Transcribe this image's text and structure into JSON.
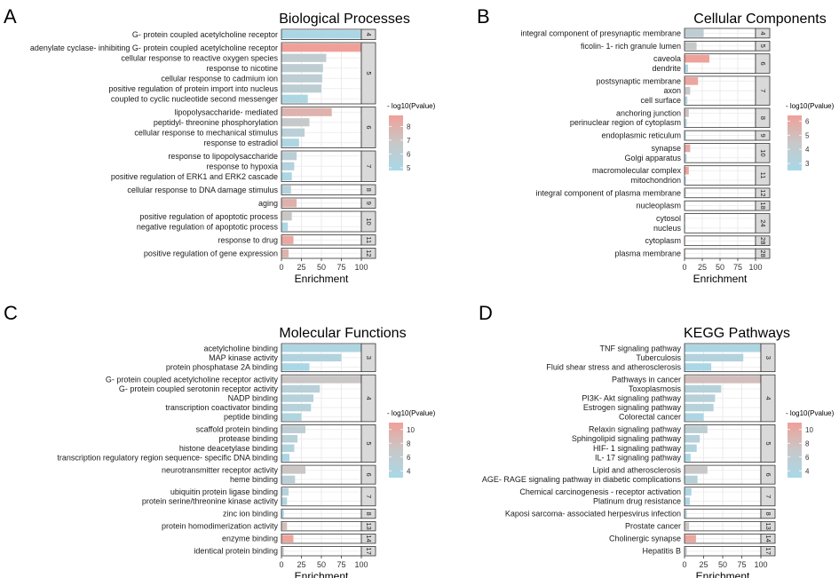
{
  "figure": {
    "common": {
      "xlabel": "Enrichment",
      "x_ticks": [
        0,
        25,
        50,
        75,
        100
      ],
      "xlim": [
        0,
        100
      ],
      "legend_title": "- log10(Pvalue)",
      "color_low": "#a8d8e8",
      "color_mid": "#c8c8c8",
      "color_high": "#f0a098",
      "grid_color": "#ebebeb",
      "strip_color": "#d9d9d9"
    }
  },
  "chart_data": [
    {
      "type": "bar",
      "panel": "A",
      "title": "Biological Processes",
      "legend_ticks": [
        5,
        6,
        7,
        8
      ],
      "color_range": [
        4.8,
        8.8
      ],
      "groups": [
        {
          "facet": "4",
          "items": [
            {
              "label": "G- protein coupled acetylcholine receptor",
              "enrichment": 100,
              "neglog10p": 5.0
            }
          ]
        },
        {
          "facet": "5",
          "items": [
            {
              "label": "adenylate cyclase- inhibiting G- protein coupled acetylcholine receptor",
              "enrichment": 100,
              "neglog10p": 8.8
            },
            {
              "label": "cellular response to reactive oxygen species",
              "enrichment": 56,
              "neglog10p": 6.3
            },
            {
              "label": "response to nicotine",
              "enrichment": 52,
              "neglog10p": 6.2
            },
            {
              "label": "cellular response to cadmium ion",
              "enrichment": 51,
              "neglog10p": 6.2
            },
            {
              "label": "positive regulation of protein import into nucleus",
              "enrichment": 50,
              "neglog10p": 6.1
            },
            {
              "label": "coupled to cyclic nucleotide second messenger",
              "enrichment": 33,
              "neglog10p": 5.1
            }
          ]
        },
        {
          "facet": "6",
          "items": [
            {
              "label": "lipopolysaccharide- mediated",
              "enrichment": 63,
              "neglog10p": 7.9
            },
            {
              "label": "peptidyl- threonine phosphorylation",
              "enrichment": 35,
              "neglog10p": 6.7
            },
            {
              "label": "cellular response to mechanical stimulus",
              "enrichment": 29,
              "neglog10p": 5.9
            },
            {
              "label": "response to estradiol",
              "enrichment": 22,
              "neglog10p": 5.2
            }
          ]
        },
        {
          "facet": "7",
          "items": [
            {
              "label": "response to lipopolysaccharide",
              "enrichment": 19,
              "neglog10p": 6.0
            },
            {
              "label": "response to hypoxia",
              "enrichment": 16,
              "neglog10p": 5.5
            },
            {
              "label": "positive regulation of ERK1 and ERK2 cascade",
              "enrichment": 13,
              "neglog10p": 5.1
            }
          ]
        },
        {
          "facet": "8",
          "items": [
            {
              "label": "cellular response to DNA damage stimulus",
              "enrichment": 12,
              "neglog10p": 5.6
            }
          ]
        },
        {
          "facet": "9",
          "items": [
            {
              "label": "aging",
              "enrichment": 19,
              "neglog10p": 8.0
            }
          ]
        },
        {
          "facet": "10",
          "items": [
            {
              "label": "positive regulation of apoptotic process",
              "enrichment": 13,
              "neglog10p": 6.9
            },
            {
              "label": "negative regulation of apoptotic process",
              "enrichment": 8,
              "neglog10p": 5.1
            }
          ]
        },
        {
          "facet": "11",
          "items": [
            {
              "label": "response to drug",
              "enrichment": 15,
              "neglog10p": 8.5
            }
          ]
        },
        {
          "facet": "12",
          "items": [
            {
              "label": "positive regulation of gene expression",
              "enrichment": 9,
              "neglog10p": 7.9
            }
          ]
        }
      ]
    },
    {
      "type": "bar",
      "panel": "B",
      "title": "Cellular Components",
      "legend_ticks": [
        3,
        4,
        5,
        6
      ],
      "color_range": [
        2.5,
        6.4
      ],
      "groups": [
        {
          "facet": "4",
          "items": [
            {
              "label": "integral component of presynaptic membrane",
              "enrichment": 27,
              "neglog10p": 3.8
            }
          ]
        },
        {
          "facet": "5",
          "items": [
            {
              "label": "ficolin- 1- rich granule lumen",
              "enrichment": 17,
              "neglog10p": 4.3
            }
          ]
        },
        {
          "facet": "6",
          "items": [
            {
              "label": "caveola",
              "enrichment": 35,
              "neglog10p": 6.3
            },
            {
              "label": "dendrite",
              "enrichment": 5,
              "neglog10p": 2.9
            }
          ]
        },
        {
          "facet": "7",
          "items": [
            {
              "label": "postsynaptic membrane",
              "enrichment": 19,
              "neglog10p": 6.1
            },
            {
              "label": "axon",
              "enrichment": 8,
              "neglog10p": 4.5
            },
            {
              "label": "cell surface",
              "enrichment": 4,
              "neglog10p": 3.2
            }
          ]
        },
        {
          "facet": "8",
          "items": [
            {
              "label": "anchoring junction",
              "enrichment": 6,
              "neglog10p": 4.8
            },
            {
              "label": "perinuclear region of cytoplasm",
              "enrichment": 3,
              "neglog10p": 3.1
            }
          ]
        },
        {
          "facet": "9",
          "items": [
            {
              "label": "endoplasmic reticulum",
              "enrichment": 2,
              "neglog10p": 2.8
            }
          ]
        },
        {
          "facet": "10",
          "items": [
            {
              "label": "synapse",
              "enrichment": 8,
              "neglog10p": 5.9
            },
            {
              "label": "Golgi apparatus",
              "enrichment": 3,
              "neglog10p": 3.4
            }
          ]
        },
        {
          "facet": "11",
          "items": [
            {
              "label": "macromolecular complex",
              "enrichment": 6,
              "neglog10p": 6.2
            },
            {
              "label": "mitochondrion",
              "enrichment": 2,
              "neglog10p": 3.2
            }
          ]
        },
        {
          "facet": "12",
          "items": [
            {
              "label": "integral component of plasma membrane",
              "enrichment": 2,
              "neglog10p": 4.2
            }
          ]
        },
        {
          "facet": "18",
          "items": [
            {
              "label": "nucleoplasm",
              "enrichment": 1,
              "neglog10p": 3.0
            }
          ]
        },
        {
          "facet": "24",
          "items": [
            {
              "label": "cytosol",
              "enrichment": 1,
              "neglog10p": 4.0
            },
            {
              "label": "nucleus",
              "enrichment": 1,
              "neglog10p": 3.2
            }
          ]
        },
        {
          "facet": "28",
          "items": [
            {
              "label": "cytoplasm",
              "enrichment": 1,
              "neglog10p": 5.9
            }
          ]
        },
        {
          "facet": "28",
          "items": [
            {
              "label": "plasma membrane",
              "enrichment": 1,
              "neglog10p": 6.1
            }
          ]
        }
      ]
    },
    {
      "type": "bar",
      "panel": "C",
      "title": "Molecular Functions",
      "legend_ticks": [
        4,
        6,
        8,
        10
      ],
      "color_range": [
        3.0,
        11.0
      ],
      "groups": [
        {
          "facet": "3",
          "items": [
            {
              "label": "acetylcholine binding",
              "enrichment": 100,
              "neglog10p": 3.8
            },
            {
              "label": "MAP kinase activity",
              "enrichment": 75,
              "neglog10p": 4.3
            },
            {
              "label": "protein phosphatase 2A binding",
              "enrichment": 35,
              "neglog10p": 3.2
            }
          ]
        },
        {
          "facet": "4",
          "items": [
            {
              "label": "G- protein coupled acetylcholine receptor activity",
              "enrichment": 100,
              "neglog10p": 7.2
            },
            {
              "label": "G- protein coupled serotonin receptor activity",
              "enrichment": 48,
              "neglog10p": 5.0
            },
            {
              "label": "NADP binding",
              "enrichment": 40,
              "neglog10p": 4.8
            },
            {
              "label": "transcription coactivator binding",
              "enrichment": 37,
              "neglog10p": 4.7
            },
            {
              "label": "peptide binding",
              "enrichment": 25,
              "neglog10p": 4.0
            }
          ]
        },
        {
          "facet": "5",
          "items": [
            {
              "label": "scaffold protein binding",
              "enrichment": 30,
              "neglog10p": 5.8
            },
            {
              "label": "protease binding",
              "enrichment": 20,
              "neglog10p": 5.0
            },
            {
              "label": "histone deacetylase binding",
              "enrichment": 16,
              "neglog10p": 4.5
            },
            {
              "label": "transcription regulatory region sequence- specific DNA binding",
              "enrichment": 10,
              "neglog10p": 3.4
            }
          ]
        },
        {
          "facet": "6",
          "items": [
            {
              "label": "neurotransmitter receptor activity",
              "enrichment": 30,
              "neglog10p": 7.3
            },
            {
              "label": "heme binding",
              "enrichment": 17,
              "neglog10p": 5.2
            }
          ]
        },
        {
          "facet": "7",
          "items": [
            {
              "label": "ubiquitin protein ligase binding",
              "enrichment": 9,
              "neglog10p": 4.6
            },
            {
              "label": "protein serine/threonine kinase activity",
              "enrichment": 7,
              "neglog10p": 4.2
            }
          ]
        },
        {
          "facet": "8",
          "items": [
            {
              "label": "zinc ion binding",
              "enrichment": 3,
              "neglog10p": 3.0
            }
          ]
        },
        {
          "facet": "13",
          "items": [
            {
              "label": "protein homodimerization activity",
              "enrichment": 7,
              "neglog10p": 8.0
            }
          ]
        },
        {
          "facet": "14",
          "items": [
            {
              "label": "enzyme binding",
              "enrichment": 15,
              "neglog10p": 10.6
            }
          ]
        },
        {
          "facet": "17",
          "items": [
            {
              "label": "identical protein binding",
              "enrichment": 3,
              "neglog10p": 6.5
            }
          ]
        }
      ]
    },
    {
      "type": "bar",
      "panel": "D",
      "title": "KEGG Pathways",
      "legend_ticks": [
        4,
        6,
        8,
        10
      ],
      "color_range": [
        3.0,
        11.0
      ],
      "groups": [
        {
          "facet": "3",
          "items": [
            {
              "label": "TNF signaling pathway",
              "enrichment": 100,
              "neglog10p": 3.6
            },
            {
              "label": "Tuberculosis",
              "enrichment": 77,
              "neglog10p": 4.4
            },
            {
              "label": "Fluid shear stress and atherosclerosis",
              "enrichment": 35,
              "neglog10p": 3.2
            }
          ]
        },
        {
          "facet": "4",
          "items": [
            {
              "label": "Pathways in cancer",
              "enrichment": 100,
              "neglog10p": 8.0
            },
            {
              "label": "Toxoplasmosis",
              "enrichment": 48,
              "neglog10p": 4.8
            },
            {
              "label": "PI3K- Akt signaling pathway",
              "enrichment": 40,
              "neglog10p": 5.0
            },
            {
              "label": "Estrogen signaling pathway",
              "enrichment": 38,
              "neglog10p": 4.8
            },
            {
              "label": "Colorectal cancer",
              "enrichment": 25,
              "neglog10p": 3.7
            }
          ]
        },
        {
          "facet": "5",
          "items": [
            {
              "label": "Relaxin signaling pathway",
              "enrichment": 30,
              "neglog10p": 5.6
            },
            {
              "label": "Sphingolipid signaling pathway",
              "enrichment": 20,
              "neglog10p": 4.8
            },
            {
              "label": "HIF- 1 signaling pathway",
              "enrichment": 16,
              "neglog10p": 4.3
            },
            {
              "label": "IL- 17 signaling pathway",
              "enrichment": 8,
              "neglog10p": 3.2
            }
          ]
        },
        {
          "facet": "6",
          "items": [
            {
              "label": "Lipid and atherosclerosis",
              "enrichment": 30,
              "neglog10p": 7.1
            },
            {
              "label": "AGE- RAGE signaling pathway in diabetic complications",
              "enrichment": 17,
              "neglog10p": 5.0
            }
          ]
        },
        {
          "facet": "7",
          "items": [
            {
              "label": "Chemical carcinogenesis -  receptor activation",
              "enrichment": 9,
              "neglog10p": 4.0
            },
            {
              "label": "Platinum drug resistance",
              "enrichment": 7,
              "neglog10p": 3.7
            }
          ]
        },
        {
          "facet": "8",
          "items": [
            {
              "label": "Kaposi sarcoma- associated herpesvirus infection",
              "enrichment": 3,
              "neglog10p": 5.0
            }
          ]
        },
        {
          "facet": "13",
          "items": [
            {
              "label": "Prostate cancer",
              "enrichment": 6,
              "neglog10p": 7.3
            }
          ]
        },
        {
          "facet": "14",
          "items": [
            {
              "label": "Cholinergic synapse",
              "enrichment": 15,
              "neglog10p": 10.4
            }
          ]
        },
        {
          "facet": "17",
          "items": [
            {
              "label": "Hepatitis B",
              "enrichment": 3,
              "neglog10p": 6.0
            }
          ]
        }
      ]
    }
  ]
}
